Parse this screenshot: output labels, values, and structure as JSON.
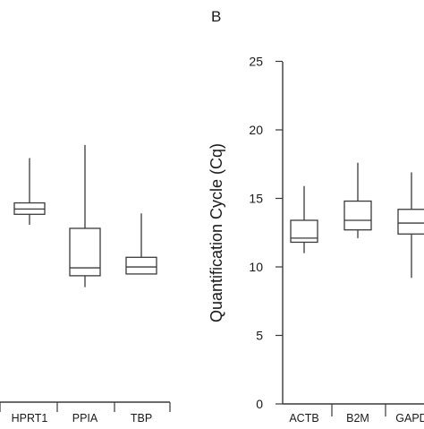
{
  "chart_data": [
    {
      "type": "box",
      "categories": [
        "HPRT1",
        "PPIA",
        "TBP"
      ],
      "boxes": [
        {
          "name": "HPRT1",
          "min": 20.2,
          "q1": 21.4,
          "median": 22.0,
          "q3": 22.7,
          "max": 27.8
        },
        {
          "name": "PPIA",
          "min": 13.1,
          "q1": 14.4,
          "median": 15.3,
          "q3": 19.8,
          "max": 29.3
        },
        {
          "name": "TBP",
          "min": null,
          "q1": 14.6,
          "median": 15.4,
          "q3": 16.5,
          "max": 21.5
        }
      ],
      "xlabel": "",
      "ylabel": "",
      "ylim": [
        0,
        35
      ],
      "grid": false,
      "legend": "none"
    },
    {
      "type": "box",
      "panel_label": "B",
      "categories": [
        "ACTB",
        "B2M",
        "GAPD"
      ],
      "boxes": [
        {
          "name": "ACTB",
          "min": 11.0,
          "q1": 11.8,
          "median": 12.1,
          "q3": 13.4,
          "max": 15.9
        },
        {
          "name": "B2M",
          "min": 12.1,
          "q1": 12.7,
          "median": 13.4,
          "q3": 14.8,
          "max": 17.6
        },
        {
          "name": "GAPD",
          "min": 9.2,
          "q1": 12.4,
          "median": 13.2,
          "q3": 14.2,
          "max": 16.9
        }
      ],
      "xlabel": "",
      "ylabel": "Quantification Cycle (Cq)",
      "yticks": [
        "0",
        "5",
        "10",
        "15",
        "20",
        "25"
      ],
      "ylim": [
        0,
        25
      ],
      "grid": false,
      "legend": "none"
    }
  ]
}
